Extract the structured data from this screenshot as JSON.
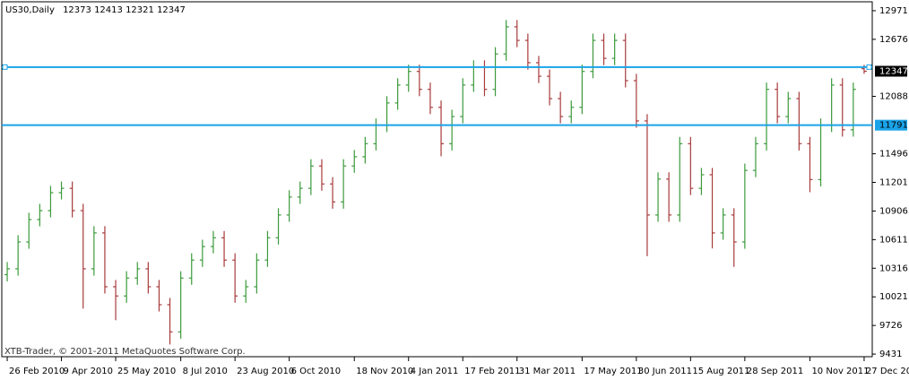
{
  "chart_data": {
    "type": "ohlc",
    "title": "US30,Daily",
    "footer": "XTB-Trader, © 2001-2011 MetaQuotes Software Corp.",
    "categories": [
      "26 Feb 2010",
      null,
      null,
      null,
      null,
      "9 Apr 2010",
      null,
      null,
      null,
      null,
      "25 May 2010",
      null,
      null,
      null,
      null,
      null,
      "8 Jul 2010",
      null,
      null,
      null,
      null,
      "23 Aug 2010",
      null,
      null,
      null,
      null,
      "6 Oct 2010",
      null,
      null,
      null,
      null,
      null,
      "18 Nov 2010",
      null,
      null,
      null,
      null,
      "4 Jan 2011",
      null,
      null,
      null,
      null,
      "17 Feb 2011",
      null,
      null,
      null,
      null,
      "31 Mar 2011",
      null,
      null,
      null,
      null,
      null,
      "17 May 2011",
      null,
      null,
      null,
      null,
      "30 Jun 2011",
      null,
      null,
      null,
      null,
      "15 Aug 2011",
      null,
      null,
      null,
      null,
      "28 Sep 2011",
      null,
      null,
      null,
      null,
      null,
      "10 Nov 2011",
      null,
      null,
      null,
      null,
      "27 Dec 2011"
    ],
    "open": [
      10250,
      10310,
      10587,
      10818,
      10910,
      11095,
      11140,
      10910,
      10310,
      10680,
      10125,
      10030,
      10215,
      10310,
      10125,
      9940,
      9660,
      10215,
      10400,
      10540,
      10630,
      10400,
      10030,
      10125,
      10400,
      10630,
      10865,
      11050,
      11140,
      11370,
      11185,
      11000,
      11370,
      11465,
      11600,
      11790,
      12020,
      12205,
      12345,
      12160,
      11975,
      11600,
      11880,
      12205,
      12390,
      12160,
      12525,
      12805,
      12665,
      12435,
      12295,
      12065,
      11880,
      11975,
      12345,
      12665,
      12480,
      12665,
      12250,
      11835,
      10865,
      11235,
      10865,
      11600,
      11140,
      11280,
      10680,
      10865,
      10587,
      11325,
      11600,
      12160,
      11880,
      12065,
      11600,
      11230,
      11790,
      12205,
      11743,
      12373
    ],
    "high": [
      10380,
      10657,
      10888,
      10980,
      11165,
      11210,
      11210,
      10980,
      10750,
      10750,
      10195,
      10285,
      10380,
      10380,
      10195,
      10010,
      10285,
      10470,
      10610,
      10700,
      10700,
      10470,
      10195,
      10470,
      10700,
      10935,
      11120,
      11210,
      11440,
      11440,
      11255,
      11440,
      11535,
      11670,
      11860,
      12090,
      12275,
      12415,
      12415,
      12230,
      12045,
      11950,
      12275,
      12460,
      12460,
      12595,
      12875,
      12875,
      12735,
      12505,
      12365,
      12135,
      12045,
      12415,
      12735,
      12735,
      12735,
      12735,
      12320,
      11905,
      11305,
      11305,
      11670,
      11670,
      11350,
      11350,
      10935,
      10935,
      11395,
      11670,
      12230,
      12230,
      12135,
      12135,
      11670,
      11860,
      12275,
      12275,
      12230,
      12413
    ],
    "low": [
      10180,
      10240,
      10517,
      10748,
      10840,
      11025,
      10840,
      9900,
      10240,
      10055,
      9780,
      9960,
      10145,
      10055,
      9870,
      9530,
      9590,
      10145,
      10330,
      10470,
      10330,
      9960,
      9960,
      10055,
      10330,
      10560,
      10795,
      10980,
      11070,
      11115,
      10930,
      10930,
      11300,
      11395,
      11530,
      11720,
      11950,
      12135,
      12090,
      11905,
      11470,
      11530,
      11810,
      12135,
      12090,
      12090,
      12455,
      12595,
      12365,
      12225,
      11995,
      11810,
      11810,
      11905,
      12275,
      12410,
      12410,
      12180,
      11765,
      10440,
      10795,
      10795,
      10795,
      11070,
      11070,
      10520,
      10610,
      10330,
      10517,
      11255,
      11530,
      11810,
      11810,
      11530,
      11100,
      11160,
      11720,
      11673,
      11673,
      12321
    ],
    "close": [
      10310,
      10587,
      10818,
      10910,
      11095,
      11140,
      10910,
      10310,
      10680,
      10125,
      10030,
      10215,
      10310,
      10125,
      9940,
      9660,
      10215,
      10400,
      10540,
      10630,
      10400,
      10030,
      10125,
      10400,
      10630,
      10865,
      11050,
      11140,
      11370,
      11185,
      11000,
      11370,
      11465,
      11600,
      11790,
      12020,
      12205,
      12345,
      12160,
      11975,
      11600,
      11880,
      12205,
      12390,
      12160,
      12525,
      12805,
      12665,
      12435,
      12295,
      12065,
      11880,
      11975,
      12345,
      12665,
      12480,
      12665,
      12250,
      11835,
      10865,
      11235,
      10865,
      11600,
      11140,
      11280,
      10680,
      10865,
      10587,
      11325,
      11600,
      12160,
      11880,
      12065,
      11600,
      11230,
      11790,
      12205,
      11743,
      12160,
      12347
    ],
    "up_color": "#3c9a3c",
    "down_color": "#a83a3a",
    "ylim": [
      9404,
      13063
    ],
    "yticks": [
      12971,
      12676,
      12088,
      11496,
      11201,
      10906,
      10611,
      10316,
      10021,
      9726,
      9431
    ],
    "hlines": [
      {
        "value": 12390,
        "color": "#1aa3e8"
      },
      {
        "value": 11791,
        "color": "#1aa3e8"
      }
    ]
  }
}
